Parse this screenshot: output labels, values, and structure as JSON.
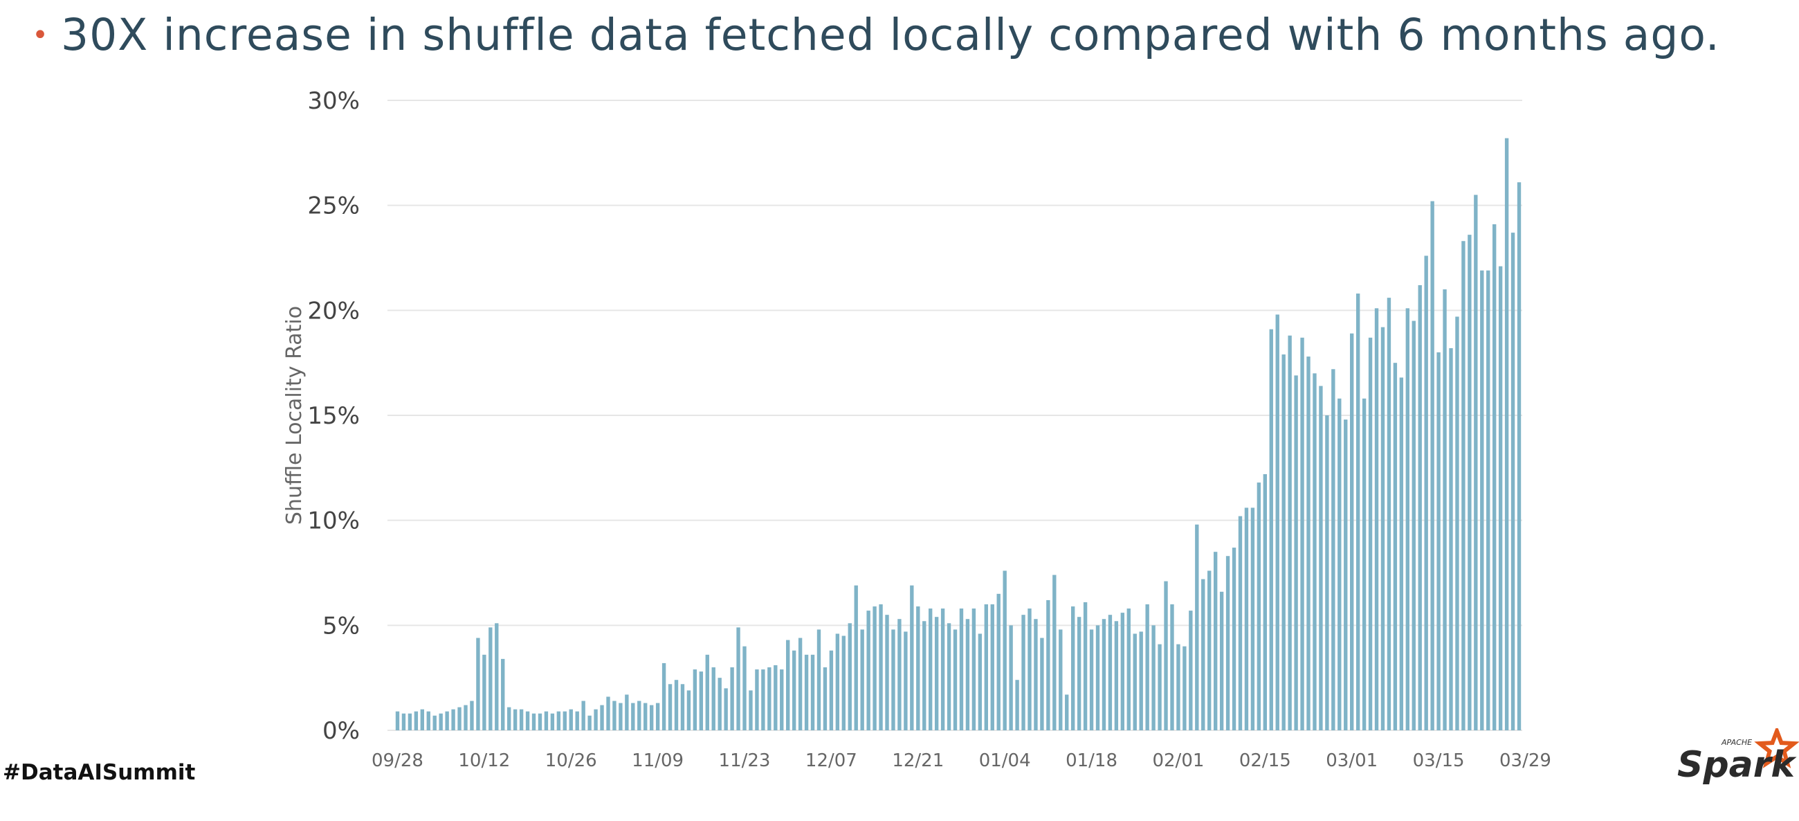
{
  "slide": {
    "bullet": "•",
    "headline": "30X increase in shuffle data fetched locally compared with 6 months ago."
  },
  "footer": {
    "hashtag": "#DataAISummit",
    "logo_name": "spark-logo",
    "logo_text": "Spark",
    "logo_superscript": "APACHE"
  },
  "colors": {
    "bar": "#7fb3c7",
    "grid": "#e6e6e6",
    "axis_text": "#666666",
    "bullet": "#d9573a",
    "headline": "#2f4b5c",
    "logo_star": "#e25a1c"
  },
  "chart_data": {
    "type": "bar",
    "ylabel": "Shuffle Locality Ratio",
    "xlabel": "",
    "ylim": [
      0,
      30
    ],
    "grid": true,
    "y_ticks": [
      0,
      5,
      10,
      15,
      20,
      25,
      30
    ],
    "y_tick_labels": [
      "0%",
      "5%",
      "10%",
      "15%",
      "20%",
      "25%",
      "30%"
    ],
    "x_tick_labels": [
      "09/28",
      "10/12",
      "10/26",
      "11/09",
      "11/23",
      "12/07",
      "12/21",
      "01/04",
      "01/18",
      "02/01",
      "02/15",
      "03/01",
      "03/15",
      "03/29"
    ],
    "x_tick_interval_days": 14,
    "series": [
      {
        "values": [
          0.9,
          0.8,
          0.8,
          0.9,
          1.0,
          0.9,
          0.7,
          0.8,
          0.9,
          1.0,
          1.1,
          1.2,
          1.4,
          4.4,
          3.6,
          4.9,
          5.1,
          3.4,
          1.1,
          1.0,
          1.0,
          0.9,
          0.8,
          0.8,
          0.9,
          0.8,
          0.9,
          0.9,
          1.0,
          0.9,
          1.4,
          0.7,
          1.0,
          1.2,
          1.6,
          1.4,
          1.3,
          1.7,
          1.3,
          1.4,
          1.3,
          1.2,
          1.3,
          3.2,
          2.2,
          2.4,
          2.2,
          1.9,
          2.9,
          2.8,
          3.6,
          3.0,
          2.5,
          2.0,
          3.0,
          4.9,
          4.0,
          1.9,
          2.9,
          2.9,
          3.0,
          3.1,
          2.9,
          4.3,
          3.8,
          4.4,
          3.6,
          3.6,
          4.8,
          3.0,
          3.8,
          4.6,
          4.5,
          5.1,
          6.9,
          4.8,
          5.7,
          5.9,
          6.0,
          5.5,
          4.8,
          5.3,
          4.7,
          6.9,
          5.9,
          5.2,
          5.8,
          5.4,
          5.8,
          5.1,
          4.8,
          5.8,
          5.3,
          5.8,
          4.6,
          6.0,
          6.0,
          6.5,
          7.6,
          5.0,
          2.4,
          5.5,
          5.8,
          5.3,
          4.4,
          6.2,
          7.4,
          4.8,
          1.7,
          5.9,
          5.4,
          6.1,
          4.8,
          5.0,
          5.3,
          5.5,
          5.2,
          5.6,
          5.8,
          4.6,
          4.7,
          6.0,
          5.0,
          4.1,
          7.1,
          6.0,
          4.1,
          4.0,
          5.7,
          9.8,
          7.2,
          7.6,
          8.5,
          6.6,
          8.3,
          8.7,
          10.2,
          10.6,
          10.6,
          11.8,
          12.2,
          19.1,
          19.8,
          17.9,
          18.8,
          16.9,
          18.7,
          17.8,
          17.0,
          16.4,
          15.0,
          17.2,
          15.8,
          14.8,
          18.9,
          20.8,
          15.8,
          18.7,
          20.1,
          19.2,
          20.6,
          17.5,
          16.8,
          20.1,
          19.5,
          21.2,
          22.6,
          25.2,
          18.0,
          21.0,
          18.2,
          19.7,
          23.3,
          23.6,
          25.5,
          21.9,
          21.9,
          24.1,
          22.1,
          28.2,
          23.7,
          26.1
        ]
      }
    ]
  }
}
